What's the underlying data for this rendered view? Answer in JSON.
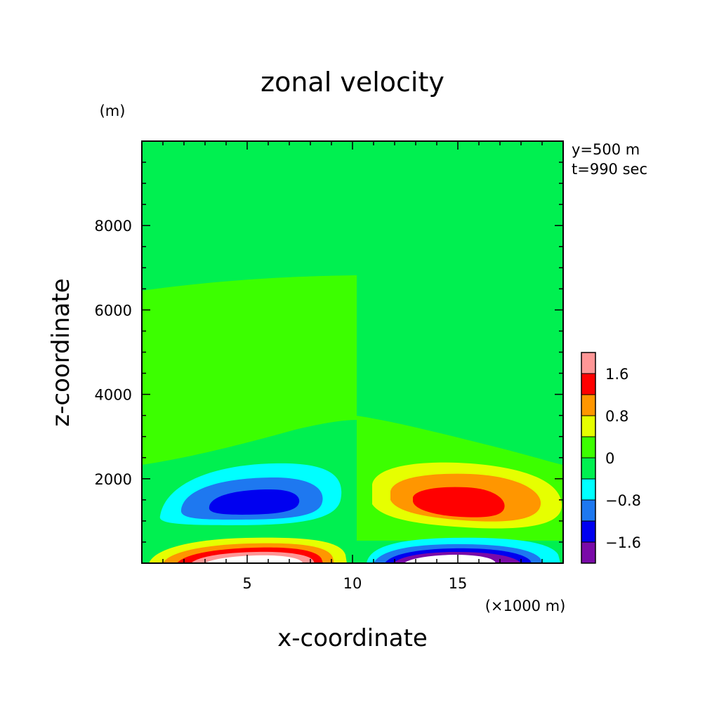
{
  "chart_data": {
    "type": "heatmap",
    "title": "zonal velocity",
    "xlabel": "x-coordinate",
    "ylabel": "z-coordinate",
    "x_unit": "(×1000 m)",
    "y_unit": "(m)",
    "xlim": [
      0,
      20
    ],
    "ylim": [
      0,
      10000
    ],
    "x_ticks": [
      5,
      10,
      15
    ],
    "y_ticks": [
      2000,
      4000,
      6000,
      8000
    ],
    "annotations": [
      "y=500 m",
      "t=990 sec"
    ],
    "colorbar": {
      "tick_labels": [
        "1.6",
        "0.8",
        "0",
        "-0.8",
        "-1.6"
      ],
      "levels": [
        {
          "lo": -2.4,
          "hi": -2.0,
          "color": "#7a0aa8"
        },
        {
          "lo": -2.0,
          "hi": -1.6,
          "color": "#0000f0"
        },
        {
          "lo": -1.6,
          "hi": -1.2,
          "color": "#1e78f0"
        },
        {
          "lo": -1.2,
          "hi": -0.8,
          "color": "#1e78f0"
        },
        {
          "lo": -0.8,
          "hi": -0.4,
          "color": "#00ffff"
        },
        {
          "lo": -0.4,
          "hi": 0.0,
          "color": "#00f050"
        },
        {
          "lo": 0.0,
          "hi": 0.4,
          "color": "#3cff00"
        },
        {
          "lo": 0.4,
          "hi": 0.8,
          "color": "#e6ff00"
        },
        {
          "lo": 0.8,
          "hi": 1.2,
          "color": "#ff9600"
        },
        {
          "lo": 1.2,
          "hi": 1.6,
          "color": "#ff0000"
        },
        {
          "lo": 1.6,
          "hi": 2.0,
          "color": "#ff9696"
        }
      ],
      "colors": [
        "#7a0aa8",
        "#0000f0",
        "#1e78f0",
        "#00ffff",
        "#00f050",
        "#3cff00",
        "#e6ff00",
        "#ff9600",
        "#ff0000",
        "#ff9696"
      ]
    },
    "field_features": [
      {
        "label": "negative cell (upper left)",
        "x_center": 6,
        "z_center": 1400,
        "min_value": -1.8
      },
      {
        "label": "positive cell (upper right)",
        "x_center": 14.5,
        "z_center": 1500,
        "max_value": 1.8
      },
      {
        "label": "positive cell (surface left)",
        "x_center": 5.5,
        "z_center": 100,
        "max_value": 2.2
      },
      {
        "label": "negative cell (surface right)",
        "x_center": 14.5,
        "z_center": 100,
        "min_value": -2.2
      }
    ]
  }
}
